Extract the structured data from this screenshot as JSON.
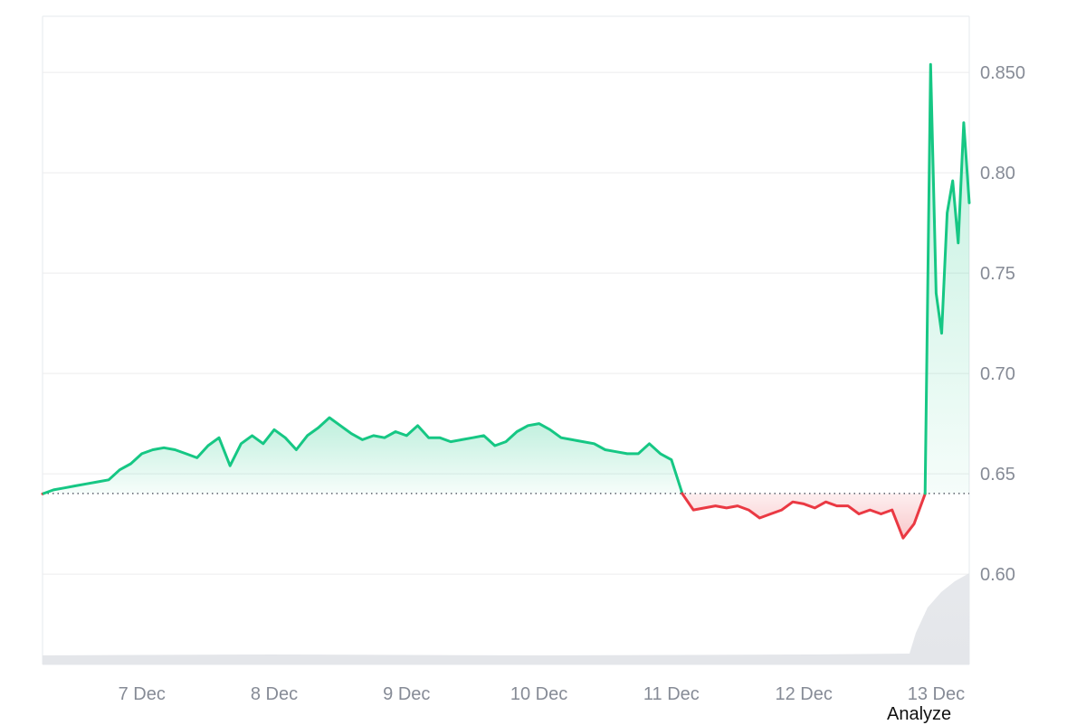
{
  "chart_data": {
    "type": "line",
    "x_ticks": [
      "7 Dec",
      "8 Dec",
      "9 Dec",
      "10 Dec",
      "11 Dec",
      "12 Dec",
      "13 Dec"
    ],
    "y_ticks": [
      "0.60",
      "0.65",
      "0.70",
      "0.75",
      "0.80",
      "0.850"
    ],
    "ylim": [
      0.555,
      0.878
    ],
    "xlim": [
      "6 Dec 06:00",
      "13 Dec 06:00"
    ],
    "baseline": 0.6402,
    "baseline_style": "dotted",
    "grid": true,
    "series": [
      {
        "x": [
          "6 Dec 06:00",
          "6 Dec 08:00",
          "6 Dec 10:00",
          "6 Dec 12:00",
          "6 Dec 14:00",
          "6 Dec 16:00",
          "6 Dec 18:00",
          "6 Dec 20:00",
          "6 Dec 22:00",
          "7 Dec 00:00",
          "7 Dec 02:00",
          "7 Dec 04:00",
          "7 Dec 06:00",
          "7 Dec 08:00",
          "7 Dec 10:00",
          "7 Dec 12:00",
          "7 Dec 14:00",
          "7 Dec 16:00",
          "7 Dec 18:00",
          "7 Dec 20:00",
          "7 Dec 22:00",
          "8 Dec 00:00",
          "8 Dec 02:00",
          "8 Dec 04:00",
          "8 Dec 06:00",
          "8 Dec 08:00",
          "8 Dec 10:00",
          "8 Dec 12:00",
          "8 Dec 14:00",
          "8 Dec 16:00",
          "8 Dec 18:00",
          "8 Dec 20:00",
          "8 Dec 22:00",
          "9 Dec 00:00",
          "9 Dec 02:00",
          "9 Dec 04:00",
          "9 Dec 06:00",
          "9 Dec 08:00",
          "9 Dec 10:00",
          "9 Dec 12:00",
          "9 Dec 14:00",
          "9 Dec 16:00",
          "9 Dec 18:00",
          "9 Dec 20:00",
          "9 Dec 22:00",
          "10 Dec 00:00",
          "10 Dec 02:00",
          "10 Dec 04:00",
          "10 Dec 06:00",
          "10 Dec 08:00",
          "10 Dec 10:00",
          "10 Dec 12:00",
          "10 Dec 14:00",
          "10 Dec 16:00",
          "10 Dec 18:00",
          "10 Dec 20:00",
          "10 Dec 22:00",
          "11 Dec 00:00",
          "11 Dec 02:00",
          "11 Dec 04:00",
          "11 Dec 06:00",
          "11 Dec 08:00",
          "11 Dec 10:00",
          "11 Dec 12:00",
          "11 Dec 14:00",
          "11 Dec 16:00",
          "11 Dec 18:00",
          "11 Dec 20:00",
          "11 Dec 22:00",
          "12 Dec 00:00",
          "12 Dec 02:00",
          "12 Dec 04:00",
          "12 Dec 06:00",
          "12 Dec 08:00",
          "12 Dec 10:00",
          "12 Dec 12:00",
          "12 Dec 14:00",
          "12 Dec 16:00",
          "12 Dec 18:00",
          "12 Dec 20:00",
          "12 Dec 22:00",
          "12 Dec 23:00",
          "13 Dec 00:00",
          "13 Dec 01:00",
          "13 Dec 02:00",
          "13 Dec 03:00",
          "13 Dec 04:00",
          "13 Dec 05:00",
          "13 Dec 06:00"
        ],
        "values": [
          0.64,
          0.642,
          0.643,
          0.644,
          0.645,
          0.646,
          0.647,
          0.652,
          0.655,
          0.66,
          0.662,
          0.663,
          0.662,
          0.66,
          0.658,
          0.664,
          0.668,
          0.654,
          0.665,
          0.669,
          0.665,
          0.672,
          0.668,
          0.662,
          0.669,
          0.673,
          0.678,
          0.674,
          0.67,
          0.667,
          0.669,
          0.668,
          0.671,
          0.669,
          0.674,
          0.668,
          0.668,
          0.666,
          0.667,
          0.668,
          0.669,
          0.664,
          0.666,
          0.671,
          0.674,
          0.675,
          0.672,
          0.668,
          0.667,
          0.666,
          0.665,
          0.662,
          0.661,
          0.66,
          0.66,
          0.665,
          0.66,
          0.657,
          0.64,
          0.632,
          0.633,
          0.634,
          0.633,
          0.634,
          0.632,
          0.628,
          0.63,
          0.632,
          0.636,
          0.635,
          0.633,
          0.636,
          0.634,
          0.634,
          0.63,
          0.632,
          0.63,
          0.632,
          0.618,
          0.625,
          0.64,
          0.854,
          0.74,
          0.72,
          0.78,
          0.796,
          0.765,
          0.825,
          0.785
        ]
      }
    ],
    "colors": {
      "up": "#16c784",
      "down": "#ea3943",
      "up_fill": "#16c784",
      "down_fill": "#ea3943",
      "grid": "#ececee",
      "axis_text": "#868b96",
      "volume": "#e4e6ea"
    }
  },
  "footer": {
    "analyze_label": "Analyze"
  }
}
